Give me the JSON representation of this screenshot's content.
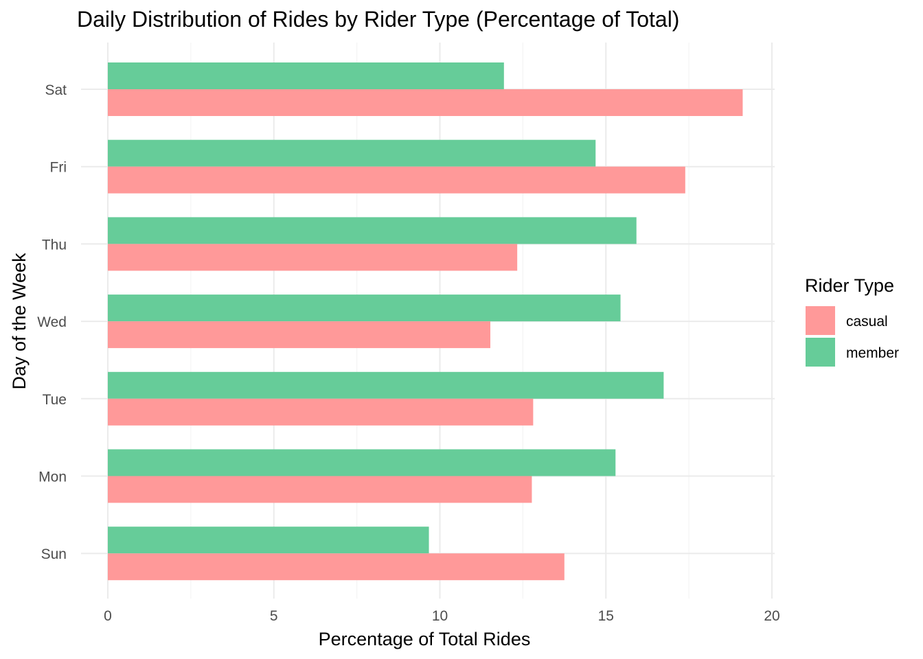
{
  "chart_data": {
    "type": "bar",
    "orientation": "horizontal",
    "title": "Daily Distribution of Rides by Rider Type (Percentage of Total)",
    "xlabel": "Percentage of Total Rides",
    "ylabel": "Day of the Week",
    "categories": [
      "Sun",
      "Mon",
      "Tue",
      "Wed",
      "Thu",
      "Fri",
      "Sat"
    ],
    "series": [
      {
        "name": "casual",
        "color": "#FF9999",
        "values": [
          13.75,
          12.77,
          12.81,
          11.52,
          12.33,
          17.39,
          19.12
        ]
      },
      {
        "name": "member",
        "color": "#66CC99",
        "values": [
          9.67,
          15.29,
          16.74,
          15.44,
          15.92,
          14.69,
          11.93
        ]
      }
    ],
    "xlim": [
      0,
      20
    ],
    "xticks": [
      "0",
      "5",
      "10",
      "15",
      "20"
    ],
    "grid": true,
    "legend": {
      "title": "Rider Type",
      "position": "right"
    }
  }
}
